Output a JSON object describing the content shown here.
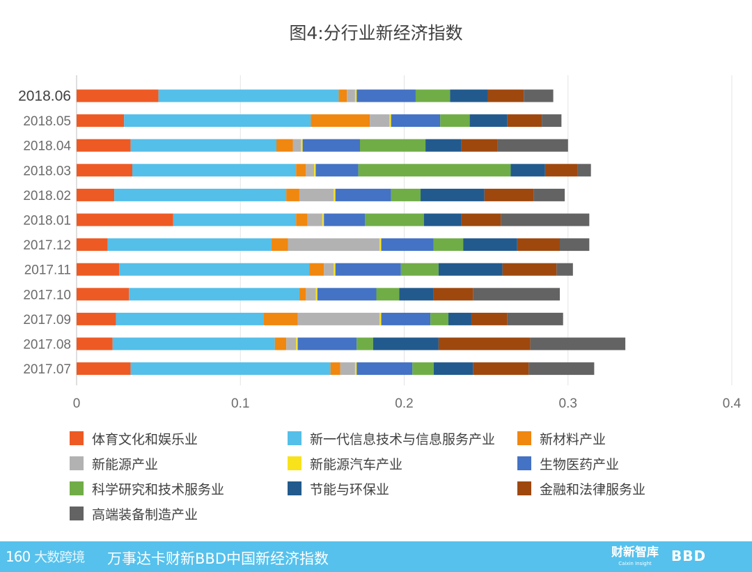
{
  "chart_data": {
    "type": "bar",
    "orientation": "horizontal",
    "stacked": true,
    "title": "图4:分行业新经济指数",
    "categories": [
      "2018.06",
      "2018.05",
      "2018.04",
      "2018.03",
      "2018.02",
      "2018.01",
      "2017.12",
      "2017.11",
      "2017.10",
      "2017.09",
      "2017.08",
      "2017.07"
    ],
    "xlim": [
      0,
      0.4
    ],
    "xticks": [
      "0",
      "0.1",
      "0.2",
      "0.3",
      "0.4"
    ],
    "grid": true,
    "legend_position": "bottom",
    "series": [
      {
        "name": "体育文化和娱乐业",
        "color": "#ee5a24",
        "values": [
          0.05,
          0.029,
          0.033,
          0.034,
          0.023,
          0.059,
          0.019,
          0.026,
          0.032,
          0.024,
          0.022,
          0.033
        ]
      },
      {
        "name": "新一代信息技术与信息服务产业",
        "color": "#54bfe9",
        "values": [
          0.11,
          0.114,
          0.089,
          0.1,
          0.105,
          0.075,
          0.1,
          0.116,
          0.104,
          0.09,
          0.099,
          0.122
        ]
      },
      {
        "name": "新材料产业",
        "color": "#f0870f",
        "values": [
          0.005,
          0.036,
          0.01,
          0.006,
          0.008,
          0.007,
          0.01,
          0.009,
          0.004,
          0.021,
          0.007,
          0.006
        ]
      },
      {
        "name": "新能源产业",
        "color": "#b2b2b2",
        "values": [
          0.005,
          0.012,
          0.005,
          0.005,
          0.021,
          0.009,
          0.056,
          0.006,
          0.006,
          0.05,
          0.006,
          0.009
        ]
      },
      {
        "name": "新能源汽车产业",
        "color": "#f7e21c",
        "values": [
          0.001,
          0.001,
          0.001,
          0.001,
          0.001,
          0.001,
          0.001,
          0.001,
          0.001,
          0.001,
          0.001,
          0.001
        ]
      },
      {
        "name": "生物医药产业",
        "color": "#4472c4",
        "values": [
          0.036,
          0.03,
          0.035,
          0.026,
          0.034,
          0.025,
          0.032,
          0.04,
          0.036,
          0.03,
          0.036,
          0.034
        ]
      },
      {
        "name": "科学研究和技术服务业",
        "color": "#70ad47",
        "values": [
          0.021,
          0.018,
          0.04,
          0.093,
          0.018,
          0.036,
          0.018,
          0.023,
          0.014,
          0.011,
          0.01,
          0.013
        ]
      },
      {
        "name": "节能与环保业",
        "color": "#225a8d",
        "values": [
          0.023,
          0.023,
          0.022,
          0.021,
          0.039,
          0.023,
          0.033,
          0.039,
          0.021,
          0.014,
          0.04,
          0.024
        ]
      },
      {
        "name": "金融和法律服务业",
        "color": "#9e480e",
        "values": [
          0.022,
          0.021,
          0.022,
          0.02,
          0.03,
          0.024,
          0.026,
          0.033,
          0.024,
          0.022,
          0.056,
          0.034
        ]
      },
      {
        "name": "高端装备制造产业",
        "color": "#636363",
        "values": [
          0.018,
          0.012,
          0.043,
          0.008,
          0.019,
          0.054,
          0.018,
          0.01,
          0.053,
          0.034,
          0.058,
          0.04
        ]
      }
    ]
  },
  "footer": {
    "logo_left": "160",
    "logo_left_cn": "大数跨境",
    "title": "万事达卡财新BBD中国新经济指数",
    "brand1": "财新智库",
    "brand1_sub": "Caixin Insight",
    "brand2": "BBD"
  }
}
